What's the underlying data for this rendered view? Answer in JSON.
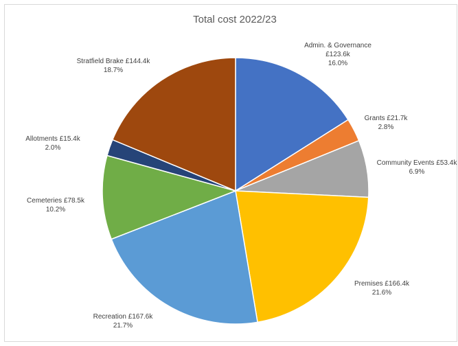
{
  "chart_data": {
    "type": "pie",
    "title": "Total cost 2022/23",
    "start_angle_deg": 0,
    "direction": "clockwise",
    "slices": [
      {
        "label": "Admin. & Governance",
        "amount_label": "£123.6k",
        "value": 123.6,
        "percent": 16.0,
        "percent_label": "16.0%",
        "color": "#4472c4"
      },
      {
        "label": "Grants",
        "amount_label": "£21.7k",
        "value": 21.7,
        "percent": 2.8,
        "percent_label": "2.8%",
        "color": "#ed7d31"
      },
      {
        "label": "Community Events",
        "amount_label": "£53.4k",
        "value": 53.4,
        "percent": 6.9,
        "percent_label": "6.9%",
        "color": "#a5a5a5"
      },
      {
        "label": "Premises",
        "amount_label": "£166.4k",
        "value": 166.4,
        "percent": 21.6,
        "percent_label": "21.6%",
        "color": "#ffc000"
      },
      {
        "label": "Recreation",
        "amount_label": "£167.6k",
        "value": 167.6,
        "percent": 21.7,
        "percent_label": "21.7%",
        "color": "#5b9bd5"
      },
      {
        "label": "Cemeteries",
        "amount_label": "£78.5k",
        "value": 78.5,
        "percent": 10.2,
        "percent_label": "10.2%",
        "color": "#70ad47"
      },
      {
        "label": "Allotments",
        "amount_label": "£15.4k",
        "value": 15.4,
        "percent": 2.0,
        "percent_label": "2.0%",
        "color": "#264478"
      },
      {
        "label": "Stratfield Brake",
        "amount_label": "£144.4k",
        "value": 144.4,
        "percent": 18.7,
        "percent_label": "18.7%",
        "color": "#9e480e"
      }
    ],
    "legend": "none",
    "data_labels": "category, value, percent"
  }
}
